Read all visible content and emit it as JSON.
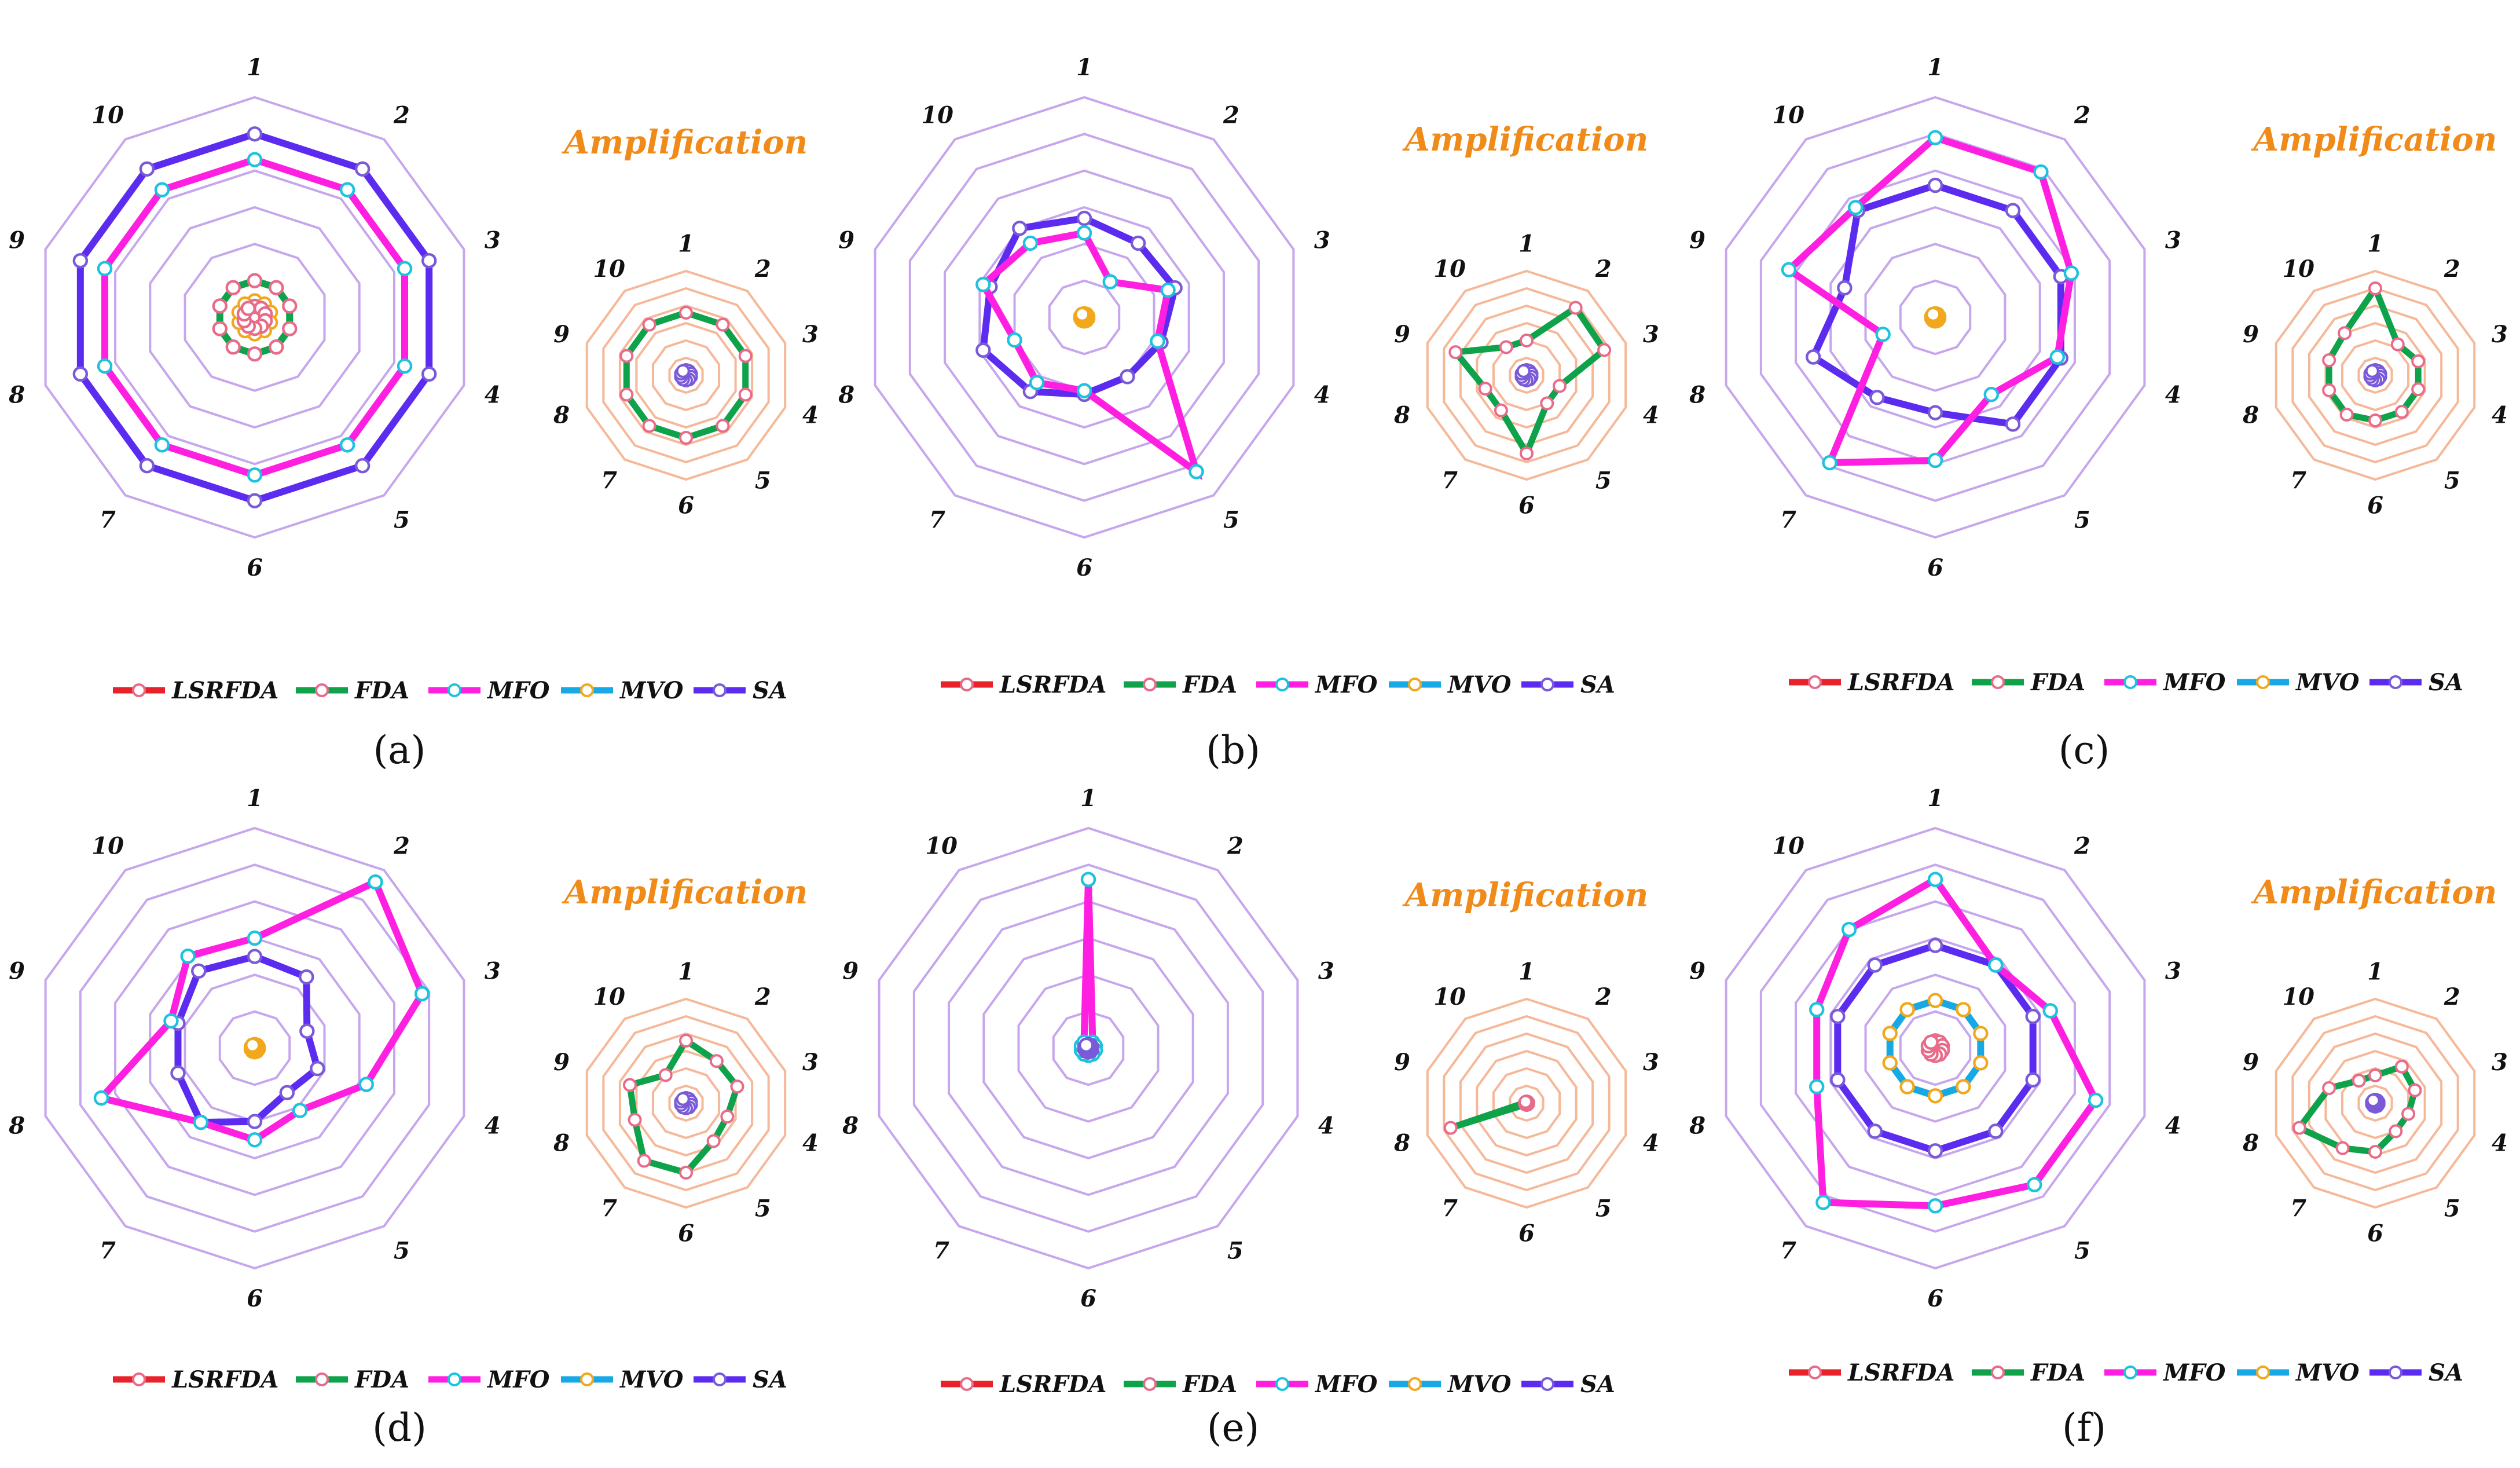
{
  "figure": {
    "amplification_label": "Amplification",
    "colors": {
      "LSRFDA": "#e8222a",
      "FDA": "#0ea24a",
      "MFO": "#ff1fe0",
      "MVO": "#17a9e6",
      "SA": "#5b2cf0",
      "grid_main": "#c6a6ec",
      "grid_amp": "#f5b898",
      "marker_fill": "#ffffff",
      "marker_edge_pink": "#e86b8a",
      "marker_edge_cyan": "#1bc3de",
      "marker_edge_orange": "#f2a81c",
      "marker_edge_purple": "#7a5ad8"
    },
    "marker_edges": {
      "LSRFDA": "#e86b8a",
      "FDA": "#e86b8a",
      "MFO": "#1bc3de",
      "MVO": "#f2a81c",
      "SA": "#7a5ad8"
    }
  },
  "chart_data": [
    {
      "type": "radar",
      "panel_label": "(a)",
      "axes": [
        "1",
        "2",
        "3",
        "4",
        "5",
        "6",
        "7",
        "8",
        "9",
        "10"
      ],
      "grid_levels": 6,
      "legend": [
        "LSRFDA",
        "FDA",
        "MFO",
        "MVO",
        "SA"
      ],
      "main": {
        "rmax": 6,
        "series": [
          {
            "name": "SA",
            "values": [
              5.0,
              5.0,
              5.0,
              5.0,
              5.0,
              5.0,
              5.0,
              5.0,
              5.0,
              5.0
            ]
          },
          {
            "name": "MFO",
            "values": [
              4.3,
              4.3,
              4.3,
              4.3,
              4.3,
              4.3,
              4.3,
              4.3,
              4.3,
              4.3
            ]
          },
          {
            "name": "FDA",
            "values": [
              1.0,
              1.0,
              1.0,
              1.0,
              1.0,
              1.0,
              1.0,
              1.0,
              1.0,
              1.0
            ]
          },
          {
            "name": "MVO",
            "values": [
              0.45,
              0.45,
              0.45,
              0.45,
              0.45,
              0.45,
              0.45,
              0.45,
              0.45,
              0.45
            ]
          },
          {
            "name": "LSRFDA",
            "values": [
              0.3,
              0.3,
              0.3,
              0.3,
              0.3,
              0.3,
              0.3,
              0.3,
              0.3,
              0.3
            ]
          }
        ]
      },
      "amplification": {
        "rmax": 6,
        "series": [
          {
            "name": "FDA",
            "values": [
              3.6,
              3.6,
              3.6,
              3.6,
              3.6,
              3.6,
              3.6,
              3.6,
              3.6,
              3.6
            ]
          },
          {
            "name": "SA",
            "values": [
              0.3,
              0.3,
              0.3,
              0.3,
              0.3,
              0.3,
              0.3,
              0.3,
              0.3,
              0.3
            ]
          }
        ]
      }
    },
    {
      "type": "radar",
      "panel_label": "(b)",
      "axes": [
        "1",
        "2",
        "3",
        "4",
        "5",
        "6",
        "7",
        "8",
        "9",
        "10"
      ],
      "grid_levels": 6,
      "legend": [
        "LSRFDA",
        "FDA",
        "MFO",
        "MVO",
        "SA"
      ],
      "main": {
        "rmax": 6,
        "series": [
          {
            "name": "SA",
            "values": [
              2.7,
              2.5,
              2.6,
              2.2,
              2.0,
              2.1,
              2.5,
              2.9,
              2.7,
              3.0
            ]
          },
          {
            "name": "MFO",
            "values": [
              2.3,
              1.2,
              2.4,
              2.1,
              5.2,
              2.0,
              2.2,
              2.0,
              2.9,
              2.5
            ]
          },
          {
            "name": "MVO",
            "values": [
              0.1,
              0.1,
              0.1,
              0.1,
              0.1,
              0.1,
              0.1,
              0.1,
              0.1,
              0.1
            ]
          }
        ]
      },
      "amplification": {
        "rmax": 6,
        "series": [
          {
            "name": "FDA",
            "values": [
              2.0,
              4.8,
              4.7,
              2.0,
              2.0,
              4.5,
              2.5,
              2.5,
              4.3,
              2.0
            ]
          },
          {
            "name": "SA",
            "values": [
              0.3,
              0.3,
              0.3,
              0.3,
              0.3,
              0.3,
              0.3,
              0.3,
              0.3,
              0.3
            ]
          }
        ]
      }
    },
    {
      "type": "radar",
      "panel_label": "(c)",
      "axes": [
        "1",
        "2",
        "3",
        "4",
        "5",
        "6",
        "7",
        "8",
        "9",
        "10"
      ],
      "grid_levels": 6,
      "legend": [
        "LSRFDA",
        "FDA",
        "MFO",
        "MVO",
        "SA"
      ],
      "main": {
        "rmax": 6,
        "series": [
          {
            "name": "SA",
            "values": [
              3.6,
              3.6,
              3.6,
              3.6,
              3.6,
              2.6,
              2.7,
              3.5,
              2.6,
              3.6
            ]
          },
          {
            "name": "MFO",
            "values": [
              4.9,
              4.9,
              3.9,
              3.5,
              2.6,
              3.9,
              4.9,
              1.5,
              4.2,
              3.7
            ]
          },
          {
            "name": "MVO",
            "values": [
              0.1,
              0.1,
              0.1,
              0.1,
              0.1,
              0.1,
              0.1,
              0.1,
              0.1,
              0.1
            ]
          }
        ]
      },
      "amplification": {
        "rmax": 6,
        "series": [
          {
            "name": "FDA",
            "values": [
              5.0,
              2.2,
              2.6,
              2.6,
              2.6,
              2.6,
              2.8,
              2.8,
              2.8,
              3.0
            ]
          },
          {
            "name": "SA",
            "values": [
              0.3,
              0.3,
              0.3,
              0.3,
              0.3,
              0.3,
              0.3,
              0.3,
              0.3,
              0.3
            ]
          }
        ]
      }
    },
    {
      "type": "radar",
      "panel_label": "(d)",
      "axes": [
        "1",
        "2",
        "3",
        "4",
        "5",
        "6",
        "7",
        "8",
        "9",
        "10"
      ],
      "grid_levels": 6,
      "legend": [
        "LSRFDA",
        "FDA",
        "MFO",
        "MVO",
        "SA"
      ],
      "main": {
        "rmax": 6,
        "series": [
          {
            "name": "SA",
            "values": [
              2.5,
              2.4,
              1.5,
              1.8,
              1.5,
              2.0,
              2.5,
              2.2,
              2.2,
              2.6
            ]
          },
          {
            "name": "MFO",
            "values": [
              3.0,
              5.6,
              4.8,
              3.2,
              2.1,
              2.5,
              2.5,
              4.4,
              2.4,
              3.1
            ]
          },
          {
            "name": "MVO",
            "values": [
              0.1,
              0.1,
              0.1,
              0.1,
              0.1,
              0.1,
              0.1,
              0.1,
              0.1,
              0.1
            ]
          }
        ]
      },
      "amplification": {
        "rmax": 6,
        "series": [
          {
            "name": "FDA",
            "values": [
              3.6,
              3.0,
              3.1,
              2.5,
              2.7,
              4.0,
              4.1,
              3.1,
              3.4,
              2.0
            ]
          },
          {
            "name": "SA",
            "values": [
              0.3,
              0.3,
              0.3,
              0.3,
              0.3,
              0.3,
              0.3,
              0.3,
              0.3,
              0.3
            ]
          }
        ]
      }
    },
    {
      "type": "radar",
      "panel_label": "(e)",
      "axes": [
        "1",
        "2",
        "3",
        "4",
        "5",
        "6",
        "7",
        "8",
        "9",
        "10"
      ],
      "grid_levels": 6,
      "legend": [
        "LSRFDA",
        "FDA",
        "MFO",
        "MVO",
        "SA"
      ],
      "main": {
        "rmax": 6,
        "series": [
          {
            "name": "MFO",
            "values": [
              4.6,
              0.2,
              0.2,
              0.2,
              0.2,
              0.2,
              0.2,
              0.2,
              0.2,
              0.2
            ]
          },
          {
            "name": "SA",
            "values": [
              0.1,
              0.1,
              0.1,
              0.1,
              0.1,
              0.1,
              0.1,
              0.1,
              0.1,
              0.1
            ]
          }
        ]
      },
      "amplification": {
        "rmax": 6,
        "series": [
          {
            "name": "FDA",
            "values": [
              0.1,
              0.1,
              0.1,
              0.1,
              0.1,
              0.1,
              0.1,
              4.6,
              0.1,
              0.1
            ]
          },
          {
            "name": "LSRFDA",
            "values": [
              0.1,
              0.1,
              0.1,
              0.1,
              0.1,
              0.1,
              0.1,
              0.1,
              0.1,
              0.1
            ]
          }
        ]
      }
    },
    {
      "type": "radar",
      "panel_label": "(f)",
      "axes": [
        "1",
        "2",
        "3",
        "4",
        "5",
        "6",
        "7",
        "8",
        "9",
        "10"
      ],
      "grid_levels": 6,
      "legend": [
        "LSRFDA",
        "FDA",
        "MFO",
        "MVO",
        "SA"
      ],
      "main": {
        "rmax": 6,
        "series": [
          {
            "name": "SA",
            "values": [
              2.8,
              2.8,
              2.8,
              2.8,
              2.8,
              2.8,
              2.8,
              2.8,
              2.8,
              2.8
            ]
          },
          {
            "name": "MFO",
            "values": [
              4.6,
              2.8,
              3.3,
              4.6,
              4.6,
              4.3,
              5.2,
              3.4,
              3.4,
              4.0
            ]
          },
          {
            "name": "MVO",
            "values": [
              1.3,
              1.3,
              1.3,
              1.3,
              1.3,
              1.3,
              1.3,
              1.3,
              1.3,
              1.3
            ]
          },
          {
            "name": "FDA",
            "values": [
              0.2,
              0.2,
              0.2,
              0.2,
              0.2,
              0.2,
              0.2,
              0.2,
              0.2,
              0.2
            ]
          }
        ]
      },
      "amplification": {
        "rmax": 6,
        "series": [
          {
            "name": "FDA",
            "values": [
              1.6,
              2.6,
              2.4,
              2.0,
              2.0,
              2.8,
              3.2,
              4.6,
              2.8,
              1.6
            ]
          },
          {
            "name": "SA",
            "values": [
              0.2,
              0.2,
              0.2,
              0.2,
              0.2,
              0.2,
              0.2,
              0.2,
              0.2,
              0.2
            ]
          }
        ]
      }
    }
  ]
}
